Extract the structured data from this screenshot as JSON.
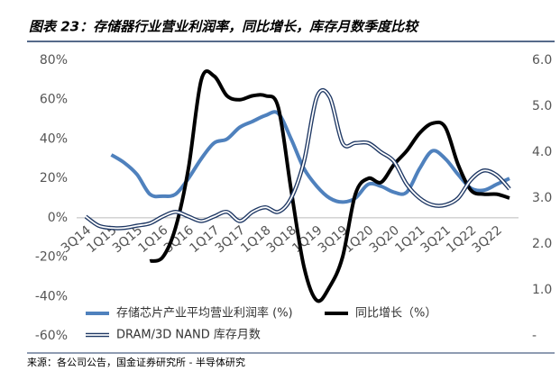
{
  "title": "图表 23：存储器行业营业利润率，同比增长，库存月数季度比较",
  "source": "来源：各公司公告，国金证券研究所 - 半导体研究",
  "chart_data": {
    "type": "line",
    "categories": [
      "3Q14",
      null,
      "1Q15",
      null,
      "3Q15",
      null,
      "1Q16",
      null,
      "3Q16",
      null,
      "1Q17",
      null,
      "3Q17",
      null,
      "1Q18",
      null,
      "3Q18",
      null,
      "1Q19",
      null,
      "3Q19",
      null,
      "1Q20",
      null,
      "3Q20",
      null,
      "1Q21",
      null,
      "3Q21",
      null,
      "1Q22",
      null,
      "3Q22",
      null
    ],
    "ylim": [
      -60,
      80
    ],
    "yticks": [
      {
        "value": 80,
        "label": "80%"
      },
      {
        "value": 60,
        "label": "60%"
      },
      {
        "value": 40,
        "label": "40%"
      },
      {
        "value": 20,
        "label": "20%"
      },
      {
        "value": 0,
        "label": "0%"
      },
      {
        "value": -20,
        "label": "-20%"
      },
      {
        "value": -40,
        "label": "-40%"
      },
      {
        "value": -60,
        "label": "-60%"
      }
    ],
    "y2lim": [
      0,
      6
    ],
    "y2ticks": [
      {
        "value": 6,
        "label": "6.0"
      },
      {
        "value": 5,
        "label": "5.0"
      },
      {
        "value": 4,
        "label": "4.0"
      },
      {
        "value": 3,
        "label": "3.0"
      },
      {
        "value": 2,
        "label": "2.0"
      },
      {
        "value": 1,
        "label": "1.0"
      },
      {
        "value": 0,
        "label": "-"
      }
    ],
    "series": [
      {
        "name": "存储芯片产业平均营业利润率 (%)",
        "color": "#4f81bd",
        "values": [
          null,
          null,
          32,
          28,
          22,
          12,
          11,
          12,
          20,
          30,
          38,
          40,
          46,
          49,
          52,
          53,
          40,
          25,
          16,
          10,
          8,
          10,
          17,
          16,
          13,
          13,
          25,
          34,
          30,
          22,
          15,
          14,
          17,
          20
        ]
      },
      {
        "name": "同比增长（%）",
        "color": "#000000",
        "values": [
          null,
          null,
          null,
          null,
          null,
          -22,
          -20,
          -5,
          25,
          70,
          72,
          62,
          60,
          62,
          62,
          56,
          14,
          -25,
          -42,
          -35,
          -20,
          12,
          20,
          18,
          27,
          34,
          43,
          48,
          46,
          27,
          14,
          12,
          12,
          10
        ]
      },
      {
        "name": "DRAM/3D NAND 库存月数",
        "color": "#1f3864",
        "axis": "y2",
        "values": [
          2.6,
          2.4,
          2.35,
          2.35,
          2.4,
          2.45,
          2.6,
          2.7,
          2.6,
          2.5,
          2.6,
          2.7,
          2.5,
          2.7,
          2.8,
          2.7,
          3.0,
          3.8,
          5.2,
          5.2,
          4.2,
          4.2,
          4.2,
          4.0,
          3.8,
          3.3,
          3.0,
          2.85,
          2.85,
          3.0,
          3.4,
          3.6,
          3.5,
          3.2
        ]
      }
    ]
  }
}
